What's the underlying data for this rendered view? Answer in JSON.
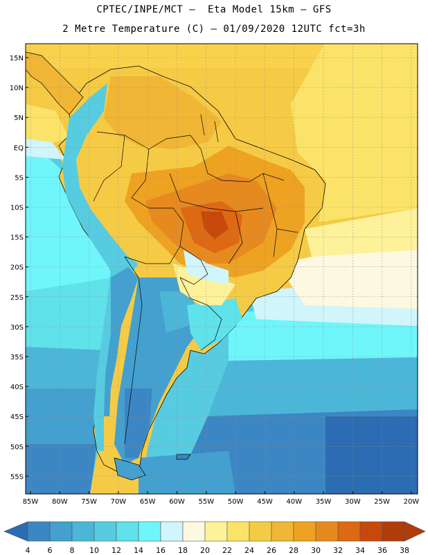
{
  "header": {
    "line1": "CPTEC/INPE/MCT —  Eta Model 15km — GFS",
    "line2": "2 Metre Temperature (C) — 01/09/2020 12UTC fct=3h"
  },
  "map": {
    "lat_labels": [
      "15N",
      "10N",
      "5N",
      "EQ",
      "5S",
      "10S",
      "15S",
      "20S",
      "25S",
      "30S",
      "35S",
      "40S",
      "45S",
      "50S",
      "55S"
    ],
    "lon_labels": [
      "85W",
      "80W",
      "75W",
      "70W",
      "65W",
      "60W",
      "55W",
      "50W",
      "45W",
      "40W",
      "35W",
      "30W",
      "25W",
      "20W"
    ],
    "grid": true
  },
  "colorbar": {
    "labels": [
      "4",
      "6",
      "8",
      "10",
      "12",
      "14",
      "16",
      "18",
      "20",
      "22",
      "24",
      "26",
      "28",
      "30",
      "32",
      "34",
      "36",
      "38"
    ],
    "colors": [
      "#2b6cb2",
      "#3c86c3",
      "#43a0cf",
      "#4cb6d8",
      "#57cce0",
      "#5fe2ea",
      "#6ff6fb",
      "#d0f5fb",
      "#fdf8e0",
      "#fdf29a",
      "#fbe36a",
      "#f5cb45",
      "#f0b635",
      "#eea222",
      "#e68a20",
      "#dd6912",
      "#c8480b",
      "#b03c0a"
    ]
  }
}
